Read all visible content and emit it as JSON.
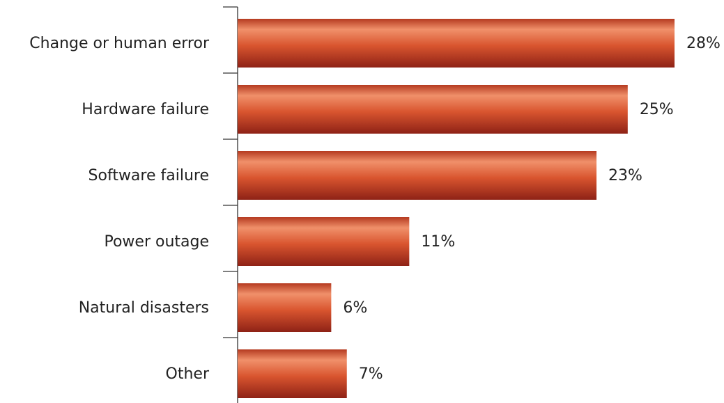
{
  "chart_data": {
    "type": "bar",
    "orientation": "horizontal",
    "categories": [
      "Change or human error",
      "Hardware failure",
      "Software failure",
      "Power outage",
      "Natural disasters",
      "Other"
    ],
    "values": [
      28,
      25,
      23,
      11,
      6,
      7
    ],
    "value_labels": [
      "28%",
      "25%",
      "23%",
      "11%",
      "6%",
      "7%"
    ],
    "color": "#d9552f"
  }
}
